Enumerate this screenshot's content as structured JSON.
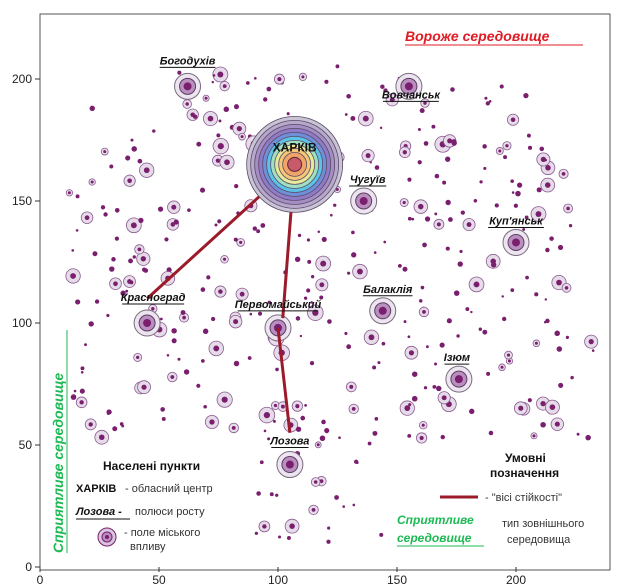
{
  "chart_data": {
    "type": "scatter",
    "title": "",
    "xlabel": "",
    "ylabel": "",
    "xlim": [
      0,
      245
    ],
    "ylim": [
      0,
      215
    ],
    "x_ticks": [
      "0",
      "50",
      "100",
      "150",
      "200"
    ],
    "y_ticks": [
      "0",
      "50",
      "100",
      "150",
      "200"
    ],
    "regions": {
      "hostile": "Вороже середовище",
      "favorable": "Сприятливе середовище"
    },
    "capital": {
      "label": "ХАРКІВ",
      "x": 107,
      "y": 165
    },
    "growth_poles": [
      {
        "label": "Богодухів",
        "x": 62,
        "y": 197
      },
      {
        "label": "Вовчанськ",
        "x": 155,
        "y": 197
      },
      {
        "label": "Чугуїв",
        "x": 136,
        "y": 150
      },
      {
        "label": "Куп'янськ",
        "x": 200,
        "y": 133
      },
      {
        "label": "Красноград",
        "x": 45,
        "y": 100
      },
      {
        "label": "Первомайський",
        "x": 100,
        "y": 98
      },
      {
        "label": "Балаклія",
        "x": 144,
        "y": 105
      },
      {
        "label": "Ізюм",
        "x": 176,
        "y": 77
      },
      {
        "label": "Лозова",
        "x": 105,
        "y": 42
      }
    ],
    "stability_axes": [
      {
        "from": [
          107,
          165
        ],
        "to": [
          45,
          110
        ]
      },
      {
        "from": [
          107,
          165
        ],
        "to": [
          102,
          102
        ]
      },
      {
        "from": [
          100,
          98
        ],
        "to": [
          105,
          55
        ]
      }
    ],
    "legend": {
      "settlements_title": "Населені пункти",
      "capital_key": "ХАРКІВ",
      "capital_desc": "- обласний центр",
      "pole_key": "Лозова -",
      "pole_desc": "полюси росту",
      "field_desc_1": "- поле міського",
      "field_desc_2": "впливу",
      "symbols_title_1": "Умовні",
      "symbols_title_2": "позначення",
      "axis_desc": "- \"вісі стійкості\"",
      "env_key_1": "Сприятливе",
      "env_key_2": "середовище",
      "env_desc_1": "тип зовнішнього",
      "env_desc_2": "середовища"
    },
    "colors": {
      "dot": "#7a1f6e",
      "halo": "#b98fc0",
      "axis_line": "#9b1b2a",
      "hostile": "#e01b24",
      "favorable": "#1db954"
    }
  }
}
